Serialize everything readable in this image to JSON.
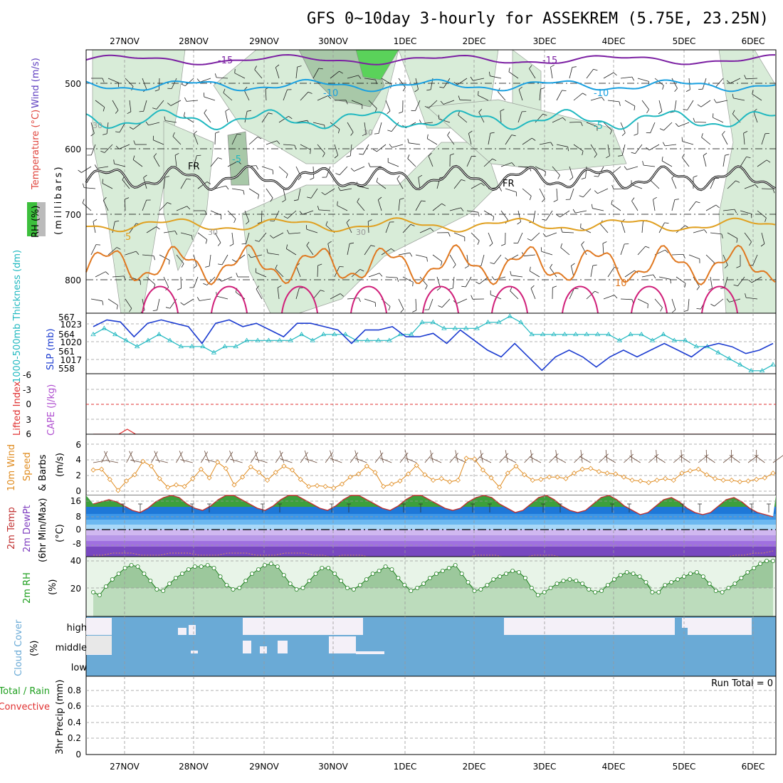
{
  "title": "GFS 0~10day 3-hourly for ASSEKREM (5.75E, 23.25N)",
  "colors": {
    "rh": "#3cbf3c",
    "temp": "#e0443c",
    "wind": "#6040c0",
    "slp": "#1c3cd0",
    "thick": "#20b8c0",
    "lifted": "#e03030",
    "cape": "#b050d0",
    "wind10": "#e08c20",
    "dew": "#8040c0",
    "rh2": "#20a020",
    "cloud": "#6aaad6",
    "precip_total": "#20a020",
    "precip_conv": "#e03030"
  },
  "dates": [
    "27NOV",
    "28NOV",
    "29NOV",
    "30NOV",
    "1DEC",
    "2DEC",
    "3DEC",
    "4DEC",
    "5DEC",
    "6DEC"
  ],
  "panels": {
    "upper": {
      "y_title": "(millibars)",
      "legend": [
        {
          "text": "Wind (m/s)",
          "color": "#6040c0"
        },
        {
          "text": "Temperature (°C)",
          "color": "#e0443c"
        }
      ],
      "rh_legend": "RH (%)",
      "y_ticks": [
        "500",
        "600",
        "700",
        "800"
      ],
      "labels": [
        "-15",
        "-15",
        "-10",
        "-10",
        "-5",
        "-5",
        "5",
        "10",
        "30",
        "30",
        "30",
        "30",
        "FR",
        "FR"
      ]
    },
    "slp": {
      "label_thick": "1000-500mb Thickness (dm)",
      "label_slp": "SLP (mb)",
      "left_ticks": [
        "567",
        "564",
        "561",
        "558"
      ],
      "right_ticks": [
        "1023",
        "1020",
        "1017"
      ]
    },
    "li": {
      "label_li": "Lifted Index",
      "label_cape": "CAPE (J/kg)",
      "ticks": [
        "-6",
        "-3",
        "0",
        "3",
        "6"
      ]
    },
    "wind10": {
      "label1": "10m Wind",
      "label2": "Speed",
      "label3": "& Barbs",
      "unit": "(m/s)",
      "ticks": [
        "6",
        "4",
        "2",
        "0"
      ]
    },
    "temp2m": {
      "label1": "2m Temp",
      "label2": "2m DewPt",
      "label3": "(6hr Min/Max)",
      "unit": "(°C)",
      "ticks": [
        "16",
        "8",
        "0",
        "-8"
      ]
    },
    "rh2m": {
      "label": "2m RH",
      "unit": "(%)",
      "ticks": [
        "40",
        "20"
      ]
    },
    "cloud": {
      "label": "Cloud Cover",
      "unit": "(%)",
      "levels": [
        "high",
        "middle",
        "low"
      ]
    },
    "precip": {
      "label1": "Total / Rain",
      "label2": "Convective",
      "label3": "3hr Precip (mm)",
      "run_total": "Run Total = 0",
      "ticks": [
        "0.8",
        "0.6",
        "0.4",
        "0.2",
        "0"
      ]
    }
  },
  "chart_data": [
    {
      "type": "area",
      "title": "Upper-air cross section (millibars)",
      "ylim": [
        850,
        450
      ],
      "series": [
        {
          "name": "-15",
          "values": [
            -15,
            -15,
            -15,
            -15,
            -15,
            -15,
            -15,
            -15,
            -15,
            -15
          ]
        },
        {
          "name": "-10",
          "values": [
            -10,
            -10,
            -10,
            -10,
            -10,
            -10,
            -10,
            -10,
            -10,
            -10
          ]
        },
        {
          "name": "-5",
          "values": [
            -5,
            -5,
            -5,
            -5,
            -5,
            -5,
            -5,
            -5,
            -5,
            -5
          ]
        },
        {
          "name": "5",
          "values": [
            5,
            5,
            5,
            5,
            5,
            5,
            5,
            5,
            5,
            5
          ]
        },
        {
          "name": "10",
          "values": [
            10,
            10,
            10,
            10,
            10,
            10,
            10,
            10,
            10,
            10
          ]
        }
      ]
    },
    {
      "type": "line",
      "title": "SLP / Thickness",
      "series": [
        {
          "name": "SLP (mb)",
          "values": [
            1022.5,
            1023.5,
            1023.2,
            1021,
            1023,
            1023.5,
            1023,
            1022.5,
            1020,
            1023,
            1023.5,
            1022.5,
            1023,
            1022,
            1021,
            1023,
            1023,
            1022.5,
            1022,
            1020,
            1022,
            1022,
            1022.5,
            1021,
            1021,
            1021.5,
            1020,
            1022,
            1020.5,
            1019,
            1018,
            1020,
            1018,
            1016,
            1018,
            1019,
            1018,
            1016.5,
            1018,
            1019,
            1018,
            1019,
            1020,
            1019,
            1018,
            1019.5,
            1020,
            1019.5,
            1018.5,
            1019,
            1020
          ]
        },
        {
          "name": "1000-500mb Thickness (dm)",
          "values": [
            564,
            565,
            564,
            563,
            562,
            563,
            564,
            563,
            562,
            562,
            562,
            561,
            562,
            562,
            563,
            563,
            563,
            563,
            563,
            564,
            563,
            564,
            564,
            564,
            563,
            563,
            563,
            563,
            564,
            564,
            566,
            566,
            565,
            565,
            565,
            565,
            566,
            566,
            567,
            566,
            564,
            564,
            564,
            564,
            564,
            564,
            564,
            564,
            563,
            564,
            564,
            563,
            564,
            563,
            563,
            562,
            562,
            561,
            560,
            559,
            558,
            558,
            559
          ]
        }
      ]
    },
    {
      "type": "line",
      "title": "Lifted Index / CAPE",
      "series": [
        {
          "name": "Lifted Index",
          "values": [
            7,
            7,
            7,
            6,
            5,
            6,
            7,
            7,
            7,
            7,
            7,
            7,
            7,
            7,
            7,
            7,
            7,
            7,
            7,
            7,
            7,
            7,
            7,
            6,
            7,
            7,
            7,
            7,
            7,
            7,
            7,
            7,
            7,
            7,
            7,
            7,
            7,
            7,
            7,
            7,
            7,
            7,
            7,
            7,
            7,
            7,
            7,
            7,
            7,
            7,
            7,
            7,
            7,
            7,
            7,
            7,
            7,
            7,
            7,
            7,
            7,
            7,
            7,
            7,
            7,
            7,
            7,
            7,
            7,
            7,
            7,
            7,
            7,
            7,
            7,
            7,
            7,
            7,
            7,
            7,
            7
          ]
        }
      ]
    },
    {
      "type": "line",
      "title": "10m Wind Speed (m/s)",
      "series": [
        {
          "name": "10m Wind Speed",
          "values": [
            2.7,
            2.8,
            1.5,
            0.1,
            1.3,
            2.1,
            3.8,
            3.2,
            1.6,
            0.5,
            0.8,
            0.6,
            1.6,
            2.8,
            1.7,
            3.7,
            2.9,
            0.8,
            1.8,
            3.1,
            2.4,
            1.4,
            2.4,
            3.2,
            2.7,
            1.5,
            0.6,
            0.7,
            0.6,
            0.4,
            0.9,
            1.8,
            2.2,
            3.2,
            2.4,
            0.6,
            0.9,
            1.3,
            2.2,
            3.3,
            2.1,
            1.4,
            1.6,
            1.2,
            1.4,
            4.2,
            4.1,
            2.7,
            1.7,
            0.5,
            2.3,
            3.2,
            2.1,
            1.4,
            1.5,
            1.8,
            1.8,
            1.6,
            2.3,
            2.8,
            2.9,
            2.5,
            2.3,
            2.2,
            1.8,
            1.4,
            1.3,
            1.1,
            1.4,
            1.6,
            1.4,
            2.3,
            2.6,
            2.8,
            2.1,
            1.6,
            1.4,
            1.4,
            1.2,
            1.3,
            1.5,
            1.7,
            2.3
          ]
        }
      ]
    },
    {
      "type": "area",
      "title": "2m Temp / DewPt (°C)",
      "series": [
        {
          "name": "2m Temp",
          "values": [
            12,
            13,
            14,
            13,
            11,
            9,
            8,
            10,
            13,
            15,
            16,
            15,
            12,
            10,
            9,
            11,
            14,
            16,
            16,
            14,
            12,
            10,
            9,
            11,
            14,
            16,
            16,
            14,
            12,
            10,
            9,
            11,
            14,
            16,
            16,
            14,
            12,
            10,
            9,
            11,
            14,
            16,
            16,
            14,
            12,
            10,
            9,
            10,
            13,
            15,
            16,
            15,
            12,
            10,
            8,
            9,
            12,
            15,
            16,
            14,
            11,
            9,
            8,
            9,
            12,
            15,
            16,
            14,
            11,
            9,
            7,
            8,
            11,
            14,
            15,
            13,
            10,
            8,
            7,
            8,
            11,
            14,
            15,
            13,
            10,
            8,
            7,
            6
          ]
        },
        {
          "name": "2m DewPt",
          "values": [
            -12,
            -12,
            -11,
            -11,
            -11,
            -12,
            -12,
            -12,
            -11,
            -11,
            -11,
            -12,
            -12,
            -12,
            -11,
            -11,
            -11,
            -12,
            -12,
            -12,
            -11,
            -11,
            -11,
            -12,
            -12,
            -13,
            -12,
            -12,
            -12,
            -13,
            -13,
            -13,
            -13,
            -13,
            -13,
            -13,
            -13,
            -13,
            -13,
            -13,
            -12,
            -12,
            -12,
            -13,
            -13,
            -13,
            -12,
            -12,
            -12,
            -13,
            -13,
            -13,
            -13,
            -13,
            -13,
            -13,
            -14,
            -14,
            -14,
            -14,
            -14,
            -14,
            -14,
            -14,
            -13,
            -13,
            -13,
            -12,
            -12,
            -11,
            -11,
            -10
          ]
        }
      ]
    },
    {
      "type": "area",
      "title": "2m RH (%)",
      "series": [
        {
          "name": "2m RH",
          "values": [
            17,
            15,
            21,
            26,
            30,
            34,
            36,
            35,
            30,
            25,
            19,
            18,
            23,
            27,
            30,
            33,
            35,
            35,
            36,
            34,
            28,
            22,
            19,
            20,
            25,
            30,
            33,
            36,
            37,
            35,
            29,
            23,
            19,
            20,
            25,
            30,
            34,
            34,
            30,
            25,
            20,
            19,
            22,
            26,
            30,
            32,
            35,
            33,
            27,
            22,
            18,
            20,
            23,
            27,
            30,
            32,
            34,
            36,
            30,
            24,
            18,
            19,
            22,
            26,
            28,
            30,
            32,
            31,
            27,
            20,
            15,
            17,
            20,
            23,
            25,
            26,
            25,
            23,
            19,
            17,
            18,
            22,
            26,
            29,
            31,
            30,
            28,
            24,
            17,
            17,
            22,
            24,
            26,
            28,
            30,
            31,
            28,
            23,
            18,
            17,
            20,
            23,
            27,
            31,
            34,
            37,
            39,
            39
          ]
        }
      ]
    },
    {
      "type": "bar",
      "title": "Cloud Cover (%)",
      "categories": [
        "high",
        "middle",
        "low"
      ]
    },
    {
      "type": "bar",
      "title": "3hr Precip (mm)",
      "ylim": [
        0,
        0.9
      ],
      "series": [
        {
          "name": "Total / Rain",
          "values": []
        },
        {
          "name": "Convective",
          "values": []
        }
      ]
    }
  ]
}
